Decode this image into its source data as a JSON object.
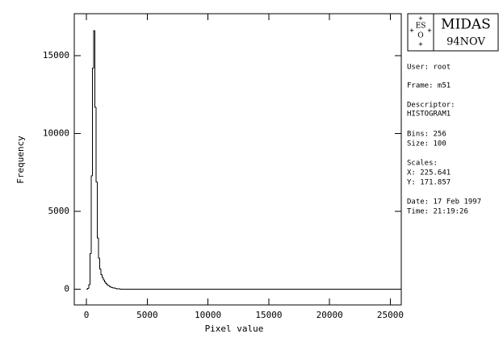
{
  "chart_data": {
    "type": "histogram",
    "xlabel": "Pixel value",
    "ylabel": "Frequency",
    "bins": [
      0,
      100,
      200,
      300,
      400,
      500,
      600,
      700,
      800,
      900,
      1000,
      1100,
      1200,
      1300,
      1400,
      1500,
      1600,
      1700,
      1800,
      1900,
      2000,
      2100,
      2200,
      2300,
      2400,
      2500,
      2600,
      2700,
      2800,
      2900,
      3000,
      25600
    ],
    "values": [
      0,
      50,
      300,
      2300,
      7300,
      14200,
      16600,
      11700,
      6900,
      3300,
      2000,
      1300,
      950,
      750,
      600,
      480,
      380,
      300,
      240,
      190,
      150,
      120,
      95,
      75,
      60,
      45,
      35,
      25,
      20,
      15,
      0
    ],
    "color": "#000000",
    "xlim": [
      -1000,
      25900
    ],
    "ylim": [
      -1000,
      17700
    ],
    "xticks": [
      0,
      5000,
      10000,
      15000,
      20000,
      25000
    ],
    "yticks": [
      0,
      5000,
      10000,
      15000
    ]
  },
  "logo": {
    "left": [
      "ES",
      "O"
    ],
    "name": "MIDAS",
    "version": "94NOV"
  },
  "info": [
    "User: root",
    "Frame: m51",
    "Descriptor:",
    "HISTOGRAM1",
    "Bins: 256",
    "Size: 100",
    "Scales:",
    "X: 225.641",
    "Y: 171.857",
    "Date: 17 Feb 1997",
    "Time: 21:19:26"
  ]
}
